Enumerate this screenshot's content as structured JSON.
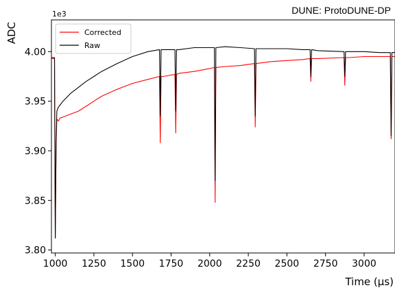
{
  "chart_data": {
    "type": "line",
    "title": "DUNE: ProtoDUNE-DP",
    "xlabel": "Time (μs)",
    "ylabel": "ADC",
    "y_multiplier": "1e3",
    "xlim": [
      975,
      3200
    ],
    "ylim": [
      3.797,
      4.032
    ],
    "x_ticks": [
      1000,
      1250,
      1500,
      1750,
      2000,
      2250,
      2500,
      2750,
      3000
    ],
    "x_tick_labels": [
      "1000",
      "1250",
      "1500",
      "1750",
      "2000",
      "2250",
      "2500",
      "2750",
      "3000"
    ],
    "y_ticks": [
      3.8,
      3.85,
      3.9,
      3.95,
      4.0
    ],
    "y_tick_labels": [
      "3.80",
      "3.85",
      "3.90",
      "3.95",
      "4.00"
    ],
    "legend_position": "upper-left",
    "grid": false,
    "series": [
      {
        "name": "Corrected",
        "color": "#ff0000",
        "x": [
          975,
          990,
          995,
          1000,
          1005,
          1010,
          1020,
          1030,
          1050,
          1100,
          1150,
          1200,
          1250,
          1300,
          1400,
          1500,
          1600,
          1675,
          1680,
          1685,
          1700,
          1775,
          1780,
          1785,
          1800,
          1900,
          2000,
          2030,
          2035,
          2040,
          2100,
          2200,
          2290,
          2295,
          2300,
          2400,
          2500,
          2600,
          2650,
          2655,
          2660,
          2700,
          2870,
          2875,
          2880,
          2900,
          3000,
          3100,
          3170,
          3175,
          3180,
          3200
        ],
        "y": [
          3.993,
          3.993,
          3.993,
          3.812,
          3.905,
          3.932,
          3.93,
          3.933,
          3.934,
          3.937,
          3.94,
          3.945,
          3.95,
          3.955,
          3.962,
          3.968,
          3.972,
          3.975,
          3.908,
          3.975,
          3.975,
          3.977,
          3.918,
          3.977,
          3.978,
          3.98,
          3.983,
          3.984,
          3.848,
          3.984,
          3.985,
          3.986,
          3.988,
          3.924,
          3.988,
          3.99,
          3.991,
          3.992,
          3.993,
          3.97,
          3.993,
          3.993,
          3.994,
          3.966,
          3.994,
          3.994,
          3.995,
          3.995,
          3.995,
          3.912,
          3.995,
          3.995
        ]
      },
      {
        "name": "Raw",
        "color": "#000000",
        "x": [
          975,
          990,
          995,
          1000,
          1005,
          1010,
          1020,
          1030,
          1050,
          1100,
          1150,
          1200,
          1250,
          1300,
          1400,
          1500,
          1600,
          1675,
          1680,
          1685,
          1700,
          1775,
          1780,
          1785,
          1800,
          1900,
          2000,
          2030,
          2035,
          2040,
          2100,
          2200,
          2290,
          2295,
          2300,
          2400,
          2500,
          2600,
          2650,
          2655,
          2660,
          2700,
          2870,
          2875,
          2880,
          2900,
          3000,
          3100,
          3170,
          3175,
          3180,
          3200
        ],
        "y": [
          3.994,
          3.994,
          3.994,
          3.812,
          3.91,
          3.94,
          3.944,
          3.946,
          3.95,
          3.958,
          3.964,
          3.97,
          3.975,
          3.98,
          3.988,
          3.995,
          4.0,
          4.002,
          3.935,
          4.002,
          4.002,
          4.002,
          3.94,
          4.002,
          4.002,
          4.004,
          4.004,
          4.004,
          3.87,
          4.004,
          4.005,
          4.004,
          4.003,
          3.935,
          4.003,
          4.003,
          4.003,
          4.002,
          4.002,
          3.975,
          4.002,
          4.001,
          4.0,
          3.975,
          4.0,
          4.0,
          4.0,
          3.999,
          3.999,
          3.915,
          3.999,
          3.999
        ]
      }
    ]
  }
}
